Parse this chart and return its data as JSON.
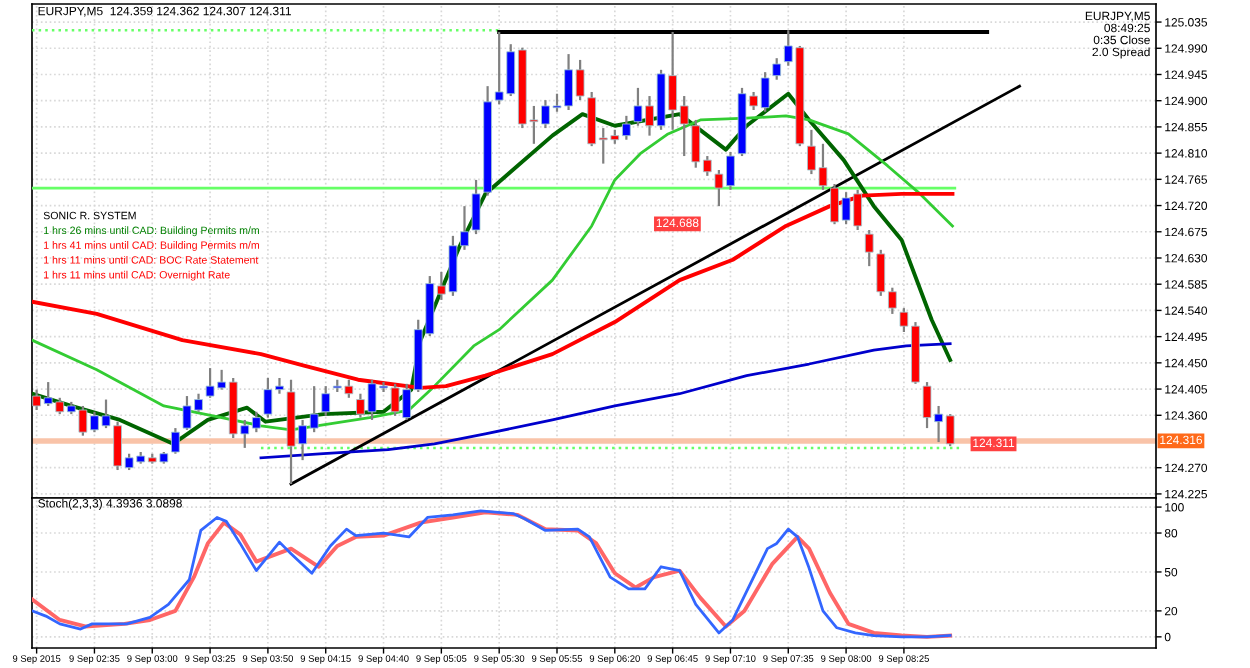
{
  "chart_data": [
    {
      "type": "candlestick",
      "title": "EURJPY,M5  124.359 124.362 124.307 124.311",
      "annotations": [
        "EURJPY,M5\n08:49:25\n0:35 Close\n2.0 Spread",
        "SONIC R. SYSTEM",
        "1 hrs 26 mins until CAD: Building Permits m/m",
        "1 hrs 41 mins until CAD: Building Permits m/m",
        "1 hrs 11 mins until CAD: BOC Rate Statement",
        "1 hrs 11 mins until CAD: Overnight Rate",
        "124.688",
        {
          "text": "124.311",
          "x": "2015-09-09T08:45",
          "y": 124.311
        }
      ],
      "x": [
        "2015-09-09T02:10",
        "2015-09-09T02:15",
        "2015-09-09T02:20",
        "2015-09-09T02:25",
        "2015-09-09T02:30",
        "2015-09-09T02:35",
        "2015-09-09T02:40",
        "2015-09-09T02:45",
        "2015-09-09T02:50",
        "2015-09-09T02:55",
        "2015-09-09T03:00",
        "2015-09-09T03:05",
        "2015-09-09T03:10",
        "2015-09-09T03:15",
        "2015-09-09T03:20",
        "2015-09-09T03:25",
        "2015-09-09T03:30",
        "2015-09-09T03:35",
        "2015-09-09T03:40",
        "2015-09-09T03:45",
        "2015-09-09T03:50",
        "2015-09-09T03:55",
        "2015-09-09T04:00",
        "2015-09-09T04:05",
        "2015-09-09T04:10",
        "2015-09-09T04:15",
        "2015-09-09T04:20",
        "2015-09-09T04:25",
        "2015-09-09T04:30",
        "2015-09-09T04:35",
        "2015-09-09T04:40",
        "2015-09-09T04:45",
        "2015-09-09T04:50",
        "2015-09-09T04:55",
        "2015-09-09T05:00",
        "2015-09-09T05:05",
        "2015-09-09T05:10",
        "2015-09-09T05:15",
        "2015-09-09T05:20",
        "2015-09-09T05:25",
        "2015-09-09T05:30",
        "2015-09-09T05:35",
        "2015-09-09T05:40",
        "2015-09-09T05:45",
        "2015-09-09T05:50",
        "2015-09-09T05:55",
        "2015-09-09T06:00",
        "2015-09-09T06:05",
        "2015-09-09T06:10",
        "2015-09-09T06:15",
        "2015-09-09T06:20",
        "2015-09-09T06:25",
        "2015-09-09T06:30",
        "2015-09-09T06:35",
        "2015-09-09T06:40",
        "2015-09-09T06:45",
        "2015-09-09T06:50",
        "2015-09-09T06:55",
        "2015-09-09T07:00",
        "2015-09-09T07:05",
        "2015-09-09T07:10",
        "2015-09-09T07:15",
        "2015-09-09T07:20",
        "2015-09-09T07:25",
        "2015-09-09T07:30",
        "2015-09-09T07:35",
        "2015-09-09T07:40",
        "2015-09-09T07:45",
        "2015-09-09T07:50",
        "2015-09-09T07:55",
        "2015-09-09T08:00",
        "2015-09-09T08:05",
        "2015-09-09T08:10",
        "2015-09-09T08:15",
        "2015-09-09T08:20",
        "2015-09-09T08:25",
        "2015-09-09T08:30",
        "2015-09-09T08:35",
        "2015-09-09T08:40",
        "2015-09-09T08:45"
      ],
      "ohlc": [
        [
          124.393,
          124.404,
          124.369,
          124.376
        ],
        [
          124.38,
          124.417,
          124.376,
          124.39
        ],
        [
          124.383,
          124.39,
          124.362,
          124.366
        ],
        [
          124.366,
          124.383,
          124.362,
          124.376
        ],
        [
          124.369,
          124.376,
          124.325,
          124.331
        ],
        [
          124.335,
          124.366,
          124.331,
          124.359
        ],
        [
          124.342,
          124.387,
          124.338,
          124.359
        ],
        [
          124.342,
          124.349,
          124.266,
          124.273
        ],
        [
          124.27,
          124.294,
          124.266,
          124.287
        ],
        [
          124.28,
          124.297,
          124.277,
          124.29
        ],
        [
          124.287,
          124.294,
          124.277,
          124.28
        ],
        [
          124.28,
          124.297,
          124.277,
          124.294
        ],
        [
          124.297,
          124.338,
          124.294,
          124.331
        ],
        [
          124.338,
          124.393,
          124.335,
          124.376
        ],
        [
          124.369,
          124.397,
          124.366,
          124.387
        ],
        [
          124.393,
          124.441,
          124.39,
          124.41
        ],
        [
          124.407,
          124.438,
          124.404,
          124.417
        ],
        [
          124.417,
          124.424,
          124.321,
          124.328
        ],
        [
          124.328,
          124.352,
          124.304,
          124.342
        ],
        [
          124.338,
          124.366,
          124.331,
          124.356
        ],
        [
          124.362,
          124.424,
          124.356,
          124.404
        ],
        [
          124.404,
          124.424,
          124.397,
          124.41
        ],
        [
          124.4,
          124.421,
          124.242,
          124.307
        ],
        [
          124.311,
          124.352,
          124.283,
          124.342
        ],
        [
          124.338,
          124.41,
          124.331,
          124.362
        ],
        [
          124.366,
          124.41,
          124.359,
          124.397
        ],
        [
          124.407,
          124.421,
          124.4,
          124.41
        ],
        [
          124.41,
          124.421,
          124.39,
          124.397
        ],
        [
          124.387,
          124.397,
          124.356,
          124.362
        ],
        [
          124.366,
          124.421,
          124.352,
          124.414
        ],
        [
          124.407,
          124.417,
          124.4,
          124.41
        ],
        [
          124.407,
          124.414,
          124.359,
          124.366
        ],
        [
          124.356,
          124.414,
          124.352,
          124.404
        ],
        [
          124.404,
          124.524,
          124.4,
          124.507
        ],
        [
          124.5,
          124.599,
          124.496,
          124.586
        ],
        [
          124.582,
          124.606,
          124.558,
          124.568
        ],
        [
          124.572,
          124.668,
          124.565,
          124.651
        ],
        [
          124.651,
          124.719,
          124.644,
          124.675
        ],
        [
          124.678,
          124.764,
          124.671,
          124.74
        ],
        [
          124.743,
          124.925,
          124.737,
          124.898
        ],
        [
          124.901,
          125.018,
          124.894,
          124.915
        ],
        [
          124.912,
          124.997,
          124.908,
          124.984
        ],
        [
          124.987,
          124.991,
          124.853,
          124.86
        ],
        [
          124.867,
          124.891,
          124.826,
          124.864
        ],
        [
          124.86,
          124.901,
          124.853,
          124.891
        ],
        [
          124.888,
          124.912,
          124.881,
          124.891
        ],
        [
          124.891,
          124.98,
          124.884,
          124.953
        ],
        [
          124.953,
          124.97,
          124.901,
          124.908
        ],
        [
          124.905,
          124.915,
          124.822,
          124.826
        ],
        [
          124.836,
          124.853,
          124.792,
          124.833
        ],
        [
          124.84,
          124.85,
          124.826,
          124.833
        ],
        [
          124.84,
          124.874,
          124.833,
          124.86
        ],
        [
          124.864,
          124.922,
          124.857,
          124.891
        ],
        [
          124.891,
          124.908,
          124.84,
          124.857
        ],
        [
          124.857,
          124.953,
          124.85,
          124.946
        ],
        [
          124.943,
          125.018,
          124.85,
          124.884
        ],
        [
          124.891,
          124.908,
          124.805,
          124.86
        ],
        [
          124.857,
          124.867,
          124.785,
          124.795
        ],
        [
          124.798,
          124.805,
          124.771,
          124.778
        ],
        [
          124.774,
          124.781,
          124.719,
          124.75
        ],
        [
          124.754,
          124.812,
          124.747,
          124.805
        ],
        [
          124.809,
          124.922,
          124.805,
          124.912
        ],
        [
          124.908,
          124.915,
          124.884,
          124.891
        ],
        [
          124.888,
          124.949,
          124.881,
          124.939
        ],
        [
          124.943,
          124.973,
          124.936,
          124.963
        ],
        [
          124.967,
          125.021,
          124.96,
          124.994
        ],
        [
          124.991,
          124.994,
          124.822,
          124.826
        ],
        [
          124.822,
          124.85,
          124.774,
          124.781
        ],
        [
          124.785,
          124.826,
          124.747,
          124.754
        ],
        [
          124.75,
          124.757,
          124.688,
          124.692
        ],
        [
          124.695,
          124.743,
          124.688,
          124.733
        ],
        [
          124.74,
          124.747,
          124.678,
          124.685
        ],
        [
          124.671,
          124.678,
          124.616,
          124.64
        ],
        [
          124.637,
          124.644,
          124.565,
          124.572
        ],
        [
          124.572,
          124.579,
          124.534,
          124.544
        ],
        [
          124.537,
          124.544,
          124.503,
          124.513
        ],
        [
          124.513,
          124.52,
          124.414,
          124.417
        ],
        [
          124.41,
          124.417,
          124.338,
          124.356
        ],
        [
          124.349,
          124.376,
          124.314,
          124.362
        ],
        [
          124.359,
          124.362,
          124.307,
          124.311
        ]
      ],
      "colors": [
        "#ff0000",
        "#0000ff",
        "#ff0000",
        "#0000ff",
        "#ff0000",
        "#0000ff",
        "#0000ff",
        "#ff0000",
        "#0000ff",
        "#0000ff",
        "#ff0000",
        "#0000ff",
        "#0000ff",
        "#0000ff",
        "#0000ff",
        "#0000ff",
        "#0000ff",
        "#ff0000",
        "#0000ff",
        "#0000ff",
        "#0000ff",
        "#0000ff",
        "#ff0000",
        "#0000ff",
        "#0000ff",
        "#0000ff",
        "#0000ff",
        "#ff0000",
        "#ff0000",
        "#0000ff",
        "#0000ff",
        "#ff0000",
        "#0000ff",
        "#0000ff",
        "#0000ff",
        "#ff0000",
        "#0000ff",
        "#0000ff",
        "#0000ff",
        "#0000ff",
        "#0000ff",
        "#0000ff",
        "#ff0000",
        "#ff0000",
        "#0000ff",
        "#0000ff",
        "#0000ff",
        "#ff0000",
        "#ff0000",
        "#ff0000",
        "#ff0000",
        "#0000ff",
        "#0000ff",
        "#ff0000",
        "#0000ff",
        "#ff0000",
        "#ff0000",
        "#ff0000",
        "#ff0000",
        "#ff0000",
        "#0000ff",
        "#0000ff",
        "#ff0000",
        "#0000ff",
        "#0000ff",
        "#0000ff",
        "#ff0000",
        "#ff0000",
        "#ff0000",
        "#ff0000",
        "#0000ff",
        "#ff0000",
        "#ff0000",
        "#ff0000",
        "#ff0000",
        "#ff0000",
        "#ff0000",
        "#ff0000",
        "#0000ff",
        "#ff0000"
      ],
      "series": [
        {
          "type": "line",
          "color": "#0000cc",
          "x": [
            "2015-09-09T03:47",
            "2015-09-09T04:14",
            "2015-09-09T04:42",
            "2015-09-09T05:02",
            "2015-09-09T05:24",
            "2015-09-09T05:53",
            "2015-09-09T06:20",
            "2015-09-09T06:48",
            "2015-09-09T07:17",
            "2015-09-09T07:44",
            "2015-09-09T08:12",
            "2015-09-09T08:26",
            "2015-09-09T08:45"
          ],
          "values": [
            124.287,
            124.294,
            124.301,
            124.311,
            124.328,
            124.352,
            124.376,
            124.397,
            124.428,
            124.448,
            124.472,
            124.479,
            124.483
          ]
        },
        {
          "type": "line",
          "color": "#ff0000",
          "x": [
            "2015-09-09T02:08",
            "2015-09-09T02:36",
            "2015-09-09T03:13",
            "2015-09-09T03:47",
            "2015-09-09T04:06",
            "2015-09-09T04:29",
            "2015-09-09T04:56",
            "2015-09-09T05:07",
            "2015-09-09T05:24",
            "2015-09-09T05:53",
            "2015-09-09T06:20",
            "2015-09-09T06:48",
            "2015-09-09T07:11",
            "2015-09-09T07:34",
            "2015-09-09T07:53",
            "2015-09-09T08:07",
            "2015-09-09T08:24",
            "2015-09-09T08:46"
          ],
          "values": [
            124.555,
            124.534,
            124.489,
            124.465,
            124.445,
            124.421,
            124.407,
            124.41,
            124.428,
            124.465,
            124.52,
            124.592,
            124.627,
            124.685,
            124.719,
            124.737,
            124.74,
            124.74
          ]
        },
        {
          "type": "line",
          "color": "#33cc33",
          "x": [
            "2015-09-09T02:08",
            "2015-09-09T02:36",
            "2015-09-09T03:05",
            "2015-09-09T03:30",
            "2015-09-09T03:47",
            "2015-09-09T04:00",
            "2015-09-09T04:34",
            "2015-09-09T04:51",
            "2015-09-09T05:02",
            "2015-09-09T05:19",
            "2015-09-09T05:30",
            "2015-09-09T05:53",
            "2015-09-09T06:10",
            "2015-09-09T06:20",
            "2015-09-09T06:31",
            "2015-09-09T06:43",
            "2015-09-09T06:57",
            "2015-09-09T07:17",
            "2015-09-09T07:34",
            "2015-09-09T07:44",
            "2015-09-09T08:01",
            "2015-09-09T08:18",
            "2015-09-09T08:32",
            "2015-09-09T08:46"
          ],
          "values": [
            124.489,
            124.438,
            124.376,
            124.356,
            124.342,
            124.335,
            124.356,
            124.369,
            124.41,
            124.479,
            124.507,
            124.592,
            124.685,
            124.764,
            124.809,
            124.843,
            124.867,
            124.87,
            124.874,
            124.867,
            124.843,
            124.788,
            124.74,
            124.685
          ]
        },
        {
          "type": "line",
          "color": "#006400",
          "x": [
            "2015-09-09T02:08",
            "2015-09-09T02:25",
            "2015-09-09T02:46",
            "2015-09-09T03:09",
            "2015-09-09T03:24",
            "2015-09-09T03:41",
            "2015-09-09T03:49",
            "2015-09-09T04:14",
            "2015-09-09T04:40",
            "2015-09-09T04:52",
            "2015-09-09T04:56",
            "2015-09-09T05:13",
            "2015-09-09T05:24",
            "2015-09-09T05:35",
            "2015-09-09T05:53",
            "2015-09-09T06:06",
            "2015-09-09T06:20",
            "2015-09-09T06:48",
            "2015-09-09T07:08",
            "2015-09-09T07:17",
            "2015-09-09T07:35",
            "2015-09-09T07:44",
            "2015-09-09T07:59",
            "2015-09-09T08:12",
            "2015-09-09T08:24",
            "2015-09-09T08:37",
            "2015-09-09T08:45"
          ],
          "values": [
            124.397,
            124.376,
            124.352,
            124.311,
            124.352,
            124.373,
            124.349,
            124.362,
            124.366,
            124.404,
            124.489,
            124.651,
            124.74,
            124.778,
            124.84,
            124.877,
            124.857,
            124.877,
            124.816,
            124.857,
            124.912,
            124.867,
            124.798,
            124.719,
            124.661,
            124.524,
            124.455
          ]
        },
        {
          "type": "line",
          "color": "#000000",
          "x": [
            "2015-09-09T04:00",
            "2015-09-09T09:15"
          ],
          "values": [
            124.242,
            124.925
          ]
        },
        {
          "type": "line",
          "color": "#000000",
          "x": [
            "2015-09-09T05:30",
            "2015-09-09T09:01"
          ],
          "values": [
            125.018,
            125.018
          ]
        },
        {
          "type": "line",
          "color": "#66ff66",
          "x": [
            "2015-09-09T02:08",
            "2015-09-09T08:47"
          ],
          "values": [
            124.75,
            124.75
          ]
        },
        {
          "type": "line",
          "color": "#66ff66",
          "line_style": "dotted",
          "x": [
            "2015-09-09T03:47",
            "2015-09-09T08:49"
          ],
          "values": [
            124.304,
            124.304
          ]
        },
        {
          "type": "line",
          "color": "#66ff66",
          "line_style": "dotted",
          "x": [
            "2015-09-09T02:08",
            "2015-09-09T05:30"
          ],
          "values": [
            125.021,
            125.021
          ]
        }
      ],
      "ref_lines": [
        {
          "axis": "y",
          "value": 124.316,
          "color": "#f9c3a8",
          "label": "124.316"
        }
      ],
      "xlim": [
        "2015-09-09T02:08",
        "2015-09-09T10:14"
      ],
      "ylim": [
        124.218,
        125.066
      ],
      "xticks": [
        "2015-09-09T02:10",
        "2015-09-09T02:35",
        "2015-09-09T03:00",
        "2015-09-09T03:25",
        "2015-09-09T03:50",
        "2015-09-09T04:15",
        "2015-09-09T04:40",
        "2015-09-09T05:05",
        "2015-09-09T05:30",
        "2015-09-09T05:55",
        "2015-09-09T06:20",
        "2015-09-09T06:45",
        "2015-09-09T07:10",
        "2015-09-09T07:35",
        "2015-09-09T08:00",
        "2015-09-09T08:25"
      ],
      "yticks": [
        125.035,
        {
          "value": 124.99,
          "label": "124.990"
        },
        124.945,
        {
          "value": 124.9,
          "label": "124.900"
        },
        124.855,
        {
          "value": 124.81,
          "label": "124.810"
        },
        124.765,
        {
          "value": 124.72,
          "label": "124.720"
        },
        124.675,
        {
          "value": 124.63,
          "label": "124.630"
        },
        124.585,
        {
          "value": 124.54,
          "label": "124.540"
        },
        124.495,
        {
          "value": 124.45,
          "label": "124.450"
        },
        124.405,
        {
          "value": 124.36,
          "label": "124.360"
        },
        {
          "value": 124.27,
          "label": "124.270"
        },
        124.225
      ],
      "grid": true,
      "tick_labels": "y"
    },
    {
      "type": "line",
      "title": "Stoch(2,3,3) 4.3936 3.0898",
      "series": [
        {
          "color": "#3366ff",
          "x": [
            "2015-09-09T02:08",
            "2015-09-09T02:14",
            "2015-09-09T02:20",
            "2015-09-09T02:29",
            "2015-09-09T02:34",
            "2015-09-09T02:49",
            "2015-09-09T02:59",
            "2015-09-09T03:07",
            "2015-09-09T03:16",
            "2015-09-09T03:21",
            "2015-09-09T03:28",
            "2015-09-09T03:32",
            "2015-09-09T03:38",
            "2015-09-09T03:45",
            "2015-09-09T03:55",
            "2015-09-09T04:00",
            "2015-09-09T04:09",
            "2015-09-09T04:17",
            "2015-09-09T04:24",
            "2015-09-09T04:28",
            "2015-09-09T04:40",
            "2015-09-09T04:51",
            "2015-09-09T04:59",
            "2015-09-09T05:10",
            "2015-09-09T05:22",
            "2015-09-09T05:36",
            "2015-09-09T05:41",
            "2015-09-09T05:50",
            "2015-09-09T06:04",
            "2015-09-09T06:09",
            "2015-09-09T06:18",
            "2015-09-09T06:26",
            "2015-09-09T06:33",
            "2015-09-09T06:40",
            "2015-09-09T06:48",
            "2015-09-09T06:55",
            "2015-09-09T07:05",
            "2015-09-09T07:11",
            "2015-09-09T07:26",
            "2015-09-09T07:30",
            "2015-09-09T07:35",
            "2015-09-09T07:39",
            "2015-09-09T07:44",
            "2015-09-09T07:50",
            "2015-09-09T07:56",
            "2015-09-09T08:04",
            "2015-09-09T08:12",
            "2015-09-09T08:24",
            "2015-09-09T08:35",
            "2015-09-09T08:45"
          ],
          "values": [
            20,
            16,
            10,
            6,
            10,
            10,
            15,
            25,
            44,
            82,
            92,
            89,
            72,
            51,
            73,
            64,
            49,
            70,
            83,
            78,
            80,
            77,
            92,
            94,
            97,
            95,
            91,
            82,
            83,
            77,
            46,
            37,
            37,
            54,
            51,
            25,
            3,
            13,
            68,
            72,
            83,
            77,
            53,
            20,
            7,
            3,
            1,
            0,
            0,
            1
          ]
        },
        {
          "color": "#ff6666",
          "x": [
            "2015-09-09T02:08",
            "2015-09-09T02:20",
            "2015-09-09T02:31",
            "2015-09-09T02:48",
            "2015-09-09T02:59",
            "2015-09-09T03:10",
            "2015-09-09T03:18",
            "2015-09-09T03:24",
            "2015-09-09T03:31",
            "2015-09-09T03:38",
            "2015-09-09T03:45",
            "2015-09-09T04:00",
            "2015-09-09T04:12",
            "2015-09-09T04:20",
            "2015-09-09T04:28",
            "2015-09-09T04:40",
            "2015-09-09T04:56",
            "2015-09-09T05:10",
            "2015-09-09T05:24",
            "2015-09-09T05:38",
            "2015-09-09T05:50",
            "2015-09-09T06:04",
            "2015-09-09T06:12",
            "2015-09-09T06:20",
            "2015-09-09T06:29",
            "2015-09-09T06:37",
            "2015-09-09T06:48",
            "2015-09-09T06:57",
            "2015-09-09T07:08",
            "2015-09-09T07:16",
            "2015-09-09T07:28",
            "2015-09-09T07:39",
            "2015-09-09T07:44",
            "2015-09-09T07:53",
            "2015-09-09T08:01",
            "2015-09-09T08:12",
            "2015-09-09T08:24",
            "2015-09-09T08:35",
            "2015-09-09T08:45"
          ],
          "values": [
            29,
            13,
            8,
            10,
            13,
            20,
            46,
            72,
            88,
            79,
            58,
            68,
            54,
            70,
            77,
            78,
            88,
            92,
            96,
            94,
            83,
            82,
            72,
            49,
            38,
            46,
            51,
            30,
            8,
            20,
            56,
            77,
            68,
            34,
            10,
            3,
            1,
            0,
            1
          ]
        }
      ],
      "xlim": [
        "2015-09-09T02:08",
        "2015-09-09T10:14"
      ],
      "ylim": [
        -8.6,
        107
      ],
      "xticks": [
        {
          "value": "2015-09-09T02:10",
          "label": "9 Sep 2015"
        },
        {
          "value": "2015-09-09T02:35",
          "label": "9 Sep 02:35"
        },
        {
          "value": "2015-09-09T03:00",
          "label": "9 Sep 03:00"
        },
        {
          "value": "2015-09-09T03:25",
          "label": "9 Sep 03:25"
        },
        {
          "value": "2015-09-09T03:50",
          "label": "9 Sep 03:50"
        },
        {
          "value": "2015-09-09T04:15",
          "label": "9 Sep 04:15"
        },
        {
          "value": "2015-09-09T04:40",
          "label": "9 Sep 04:40"
        },
        {
          "value": "2015-09-09T05:05",
          "label": "9 Sep 05:05"
        },
        {
          "value": "2015-09-09T05:30",
          "label": "9 Sep 05:30"
        },
        {
          "value": "2015-09-09T05:55",
          "label": "9 Sep 05:55"
        },
        {
          "value": "2015-09-09T06:20",
          "label": "9 Sep 06:20"
        },
        {
          "value": "2015-09-09T06:45",
          "label": "9 Sep 06:45"
        },
        {
          "value": "2015-09-09T07:10",
          "label": "9 Sep 07:10"
        },
        {
          "value": "2015-09-09T07:35",
          "label": "9 Sep 07:35"
        },
        {
          "value": "2015-09-09T08:00",
          "label": "9 Sep 08:00"
        },
        {
          "value": "2015-09-09T08:25",
          "label": "9 Sep 08:25"
        }
      ],
      "yticks": [
        100,
        80,
        50,
        20,
        0
      ],
      "grid": true
    }
  ]
}
